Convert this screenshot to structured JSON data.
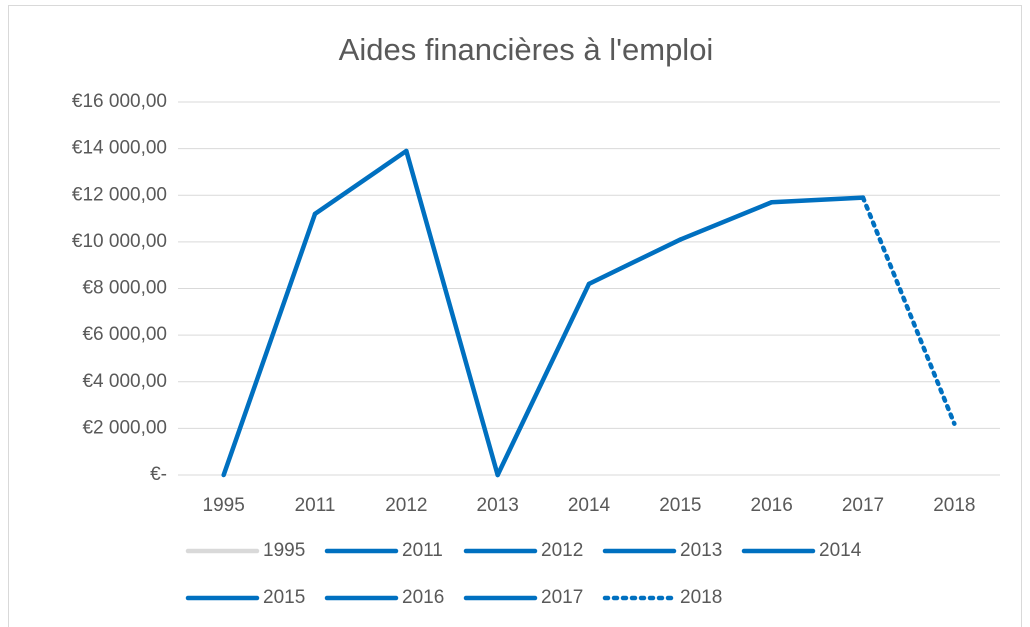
{
  "chart_data": {
    "type": "line",
    "title": "Aides financières à l'emploi",
    "categories": [
      "1995",
      "2011",
      "2012",
      "2013",
      "2014",
      "2015",
      "2016",
      "2017",
      "2018"
    ],
    "values": [
      0,
      11200,
      13900,
      0,
      8200,
      10100,
      11700,
      11900,
      2200
    ],
    "point_colors": [
      "#d9d9d9",
      "#0070c0",
      "#0070c0",
      "#0070c0",
      "#0070c0",
      "#0070c0",
      "#0070c0",
      "#0070c0",
      "#0070c0"
    ],
    "point_dash": [
      "solid",
      "solid",
      "solid",
      "solid",
      "solid",
      "solid",
      "solid",
      "solid",
      "dotted"
    ],
    "ylim": [
      0,
      16000
    ],
    "yticks": [
      {
        "value": 0,
        "label": "€-"
      },
      {
        "value": 2000,
        "label": "€2 000,00"
      },
      {
        "value": 4000,
        "label": "€4 000,00"
      },
      {
        "value": 6000,
        "label": "€6 000,00"
      },
      {
        "value": 8000,
        "label": "€8 000,00"
      },
      {
        "value": 10000,
        "label": "€10 000,00"
      },
      {
        "value": 12000,
        "label": "€12 000,00"
      },
      {
        "value": 14000,
        "label": "€14 000,00"
      },
      {
        "value": 16000,
        "label": "€16 000,00"
      }
    ],
    "grid": true,
    "legend": "bottom"
  }
}
